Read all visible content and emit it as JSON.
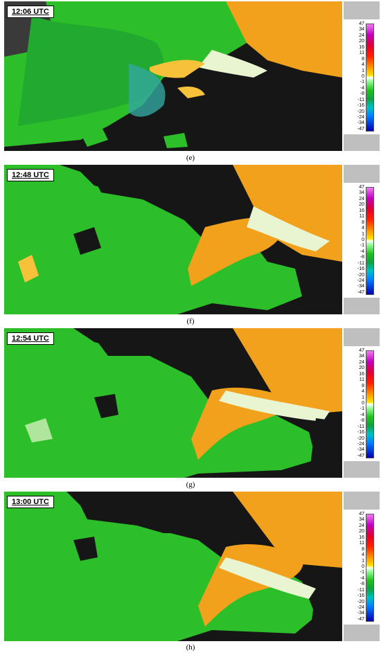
{
  "panels": [
    {
      "time": "12:06 UTC",
      "caption": "(e)"
    },
    {
      "time": "12:48 UTC",
      "caption": "(f)"
    },
    {
      "time": "12:54 UTC",
      "caption": "(g)"
    },
    {
      "time": "13:00 UTC",
      "caption": "(h)"
    }
  ],
  "scale": {
    "ticks": [
      "47",
      "34",
      "24",
      "20",
      "16",
      "11",
      "8",
      "4",
      "1",
      "0",
      "-1",
      "-4",
      "-8",
      "-11",
      "-16",
      "-20",
      "-24",
      "-34",
      "-47"
    ]
  },
  "colors": {
    "inbound_green": "#2dbf2a",
    "outbound_orange": "#f2a11c",
    "background_dark": "#161616",
    "light_band": "#e8f5d0"
  }
}
